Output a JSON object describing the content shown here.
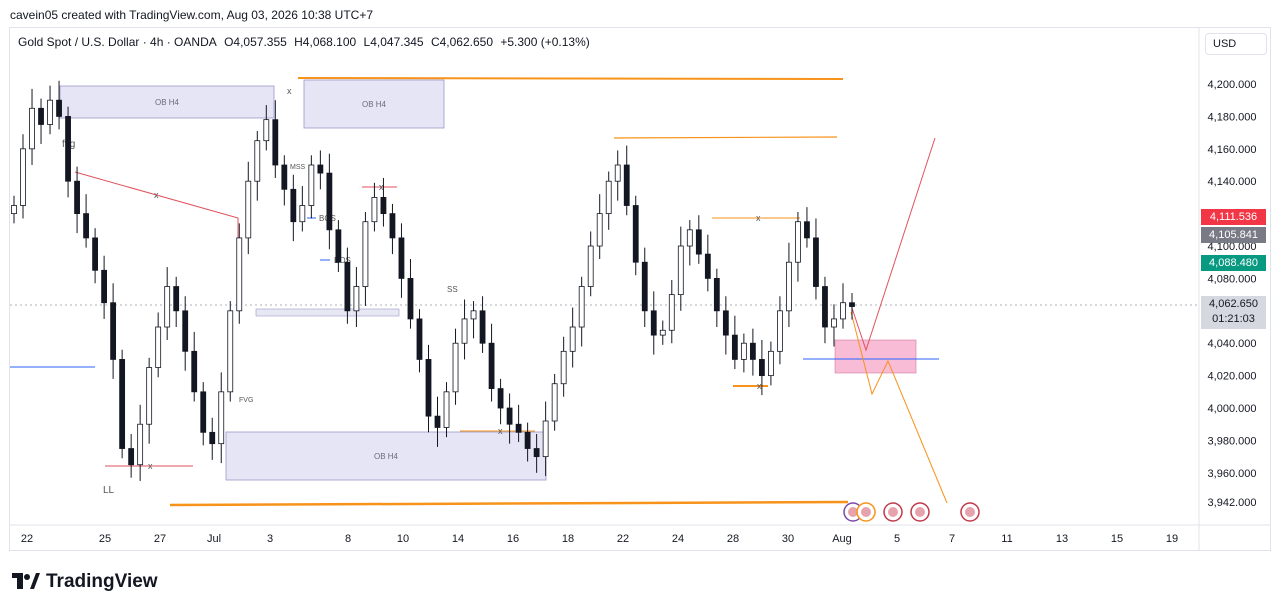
{
  "header": {
    "credit": "cavein05 created with TradingView.com, Aug 03, 2026 10:38 UTC+7"
  },
  "symbol": {
    "name": "Gold Spot / U.S. Dollar · 4h · OANDA",
    "open": "O4,057.355",
    "high": "H4,068.100",
    "low": "L4,047.345",
    "close": "C4,062.650",
    "change": "+5.300 (+0.13%)"
  },
  "currency_button": "USD",
  "price_tags": {
    "red": {
      "text": "4,111.536",
      "color": "#f23645"
    },
    "gray": {
      "text": "4,105.841",
      "color": "#787b86"
    },
    "green": {
      "text": "4,088.480",
      "color": "#089981"
    },
    "last_price": "4,062.650",
    "countdown": "01:21:03"
  },
  "logo_text": "TradingView",
  "colors": {
    "up": "#131722",
    "down": "#131722",
    "ob_fill": "#d1d0ec",
    "orange": "#f7931a",
    "red_line": "#e0525c",
    "blue_line": "#2962ff",
    "pink_zone": "#f5a0c4"
  },
  "chart_data": {
    "type": "candlestick",
    "y_axis_ticks": [
      "4,200.000",
      "4,180.000",
      "4,160.000",
      "4,140.000",
      "4,120.000",
      "4,100.000",
      "4,080.000",
      "4,060.000",
      "4,040.000",
      "4,020.000",
      "4,000.000",
      "3,980.000",
      "3,960.000",
      "3,942.000"
    ],
    "x_axis_ticks": [
      "22",
      "25",
      "27",
      "Jul",
      "3",
      "8",
      "10",
      "14",
      "16",
      "18",
      "22",
      "24",
      "28",
      "30",
      "Aug",
      "5",
      "7",
      "11",
      "13",
      "15",
      "19"
    ],
    "closes": [
      4125,
      4160,
      4185,
      4175,
      4190,
      4180,
      4140,
      4120,
      4105,
      4085,
      4065,
      4030,
      3975,
      3965,
      3990,
      4025,
      4050,
      4075,
      4060,
      4035,
      4010,
      3985,
      3978,
      4010,
      4060,
      4105,
      4140,
      4165,
      4178,
      4150,
      4135,
      4115,
      4125,
      4150,
      4145,
      4110,
      4090,
      4060,
      4075,
      4115,
      4130,
      4120,
      4105,
      4080,
      4055,
      4030,
      3995,
      3988,
      4010,
      4040,
      4055,
      4060,
      4040,
      4012,
      4000,
      3990,
      3985,
      3975,
      3970,
      3992,
      4015,
      4035,
      4050,
      4075,
      4100,
      4120,
      4140,
      4150,
      4125,
      4090,
      4060,
      4045,
      4048,
      4070,
      4100,
      4110,
      4095,
      4080,
      4060,
      4045,
      4030,
      4040,
      4030,
      4020,
      4035,
      4060,
      4090,
      4115,
      4105,
      4075,
      4050,
      4055,
      4065,
      4062.65
    ],
    "annotations": [
      "OB H4",
      "OB H4",
      "OB H4",
      "fvg",
      "FVG",
      "LL",
      "MSS",
      "BOS",
      "BOS",
      "SS",
      "x"
    ]
  }
}
